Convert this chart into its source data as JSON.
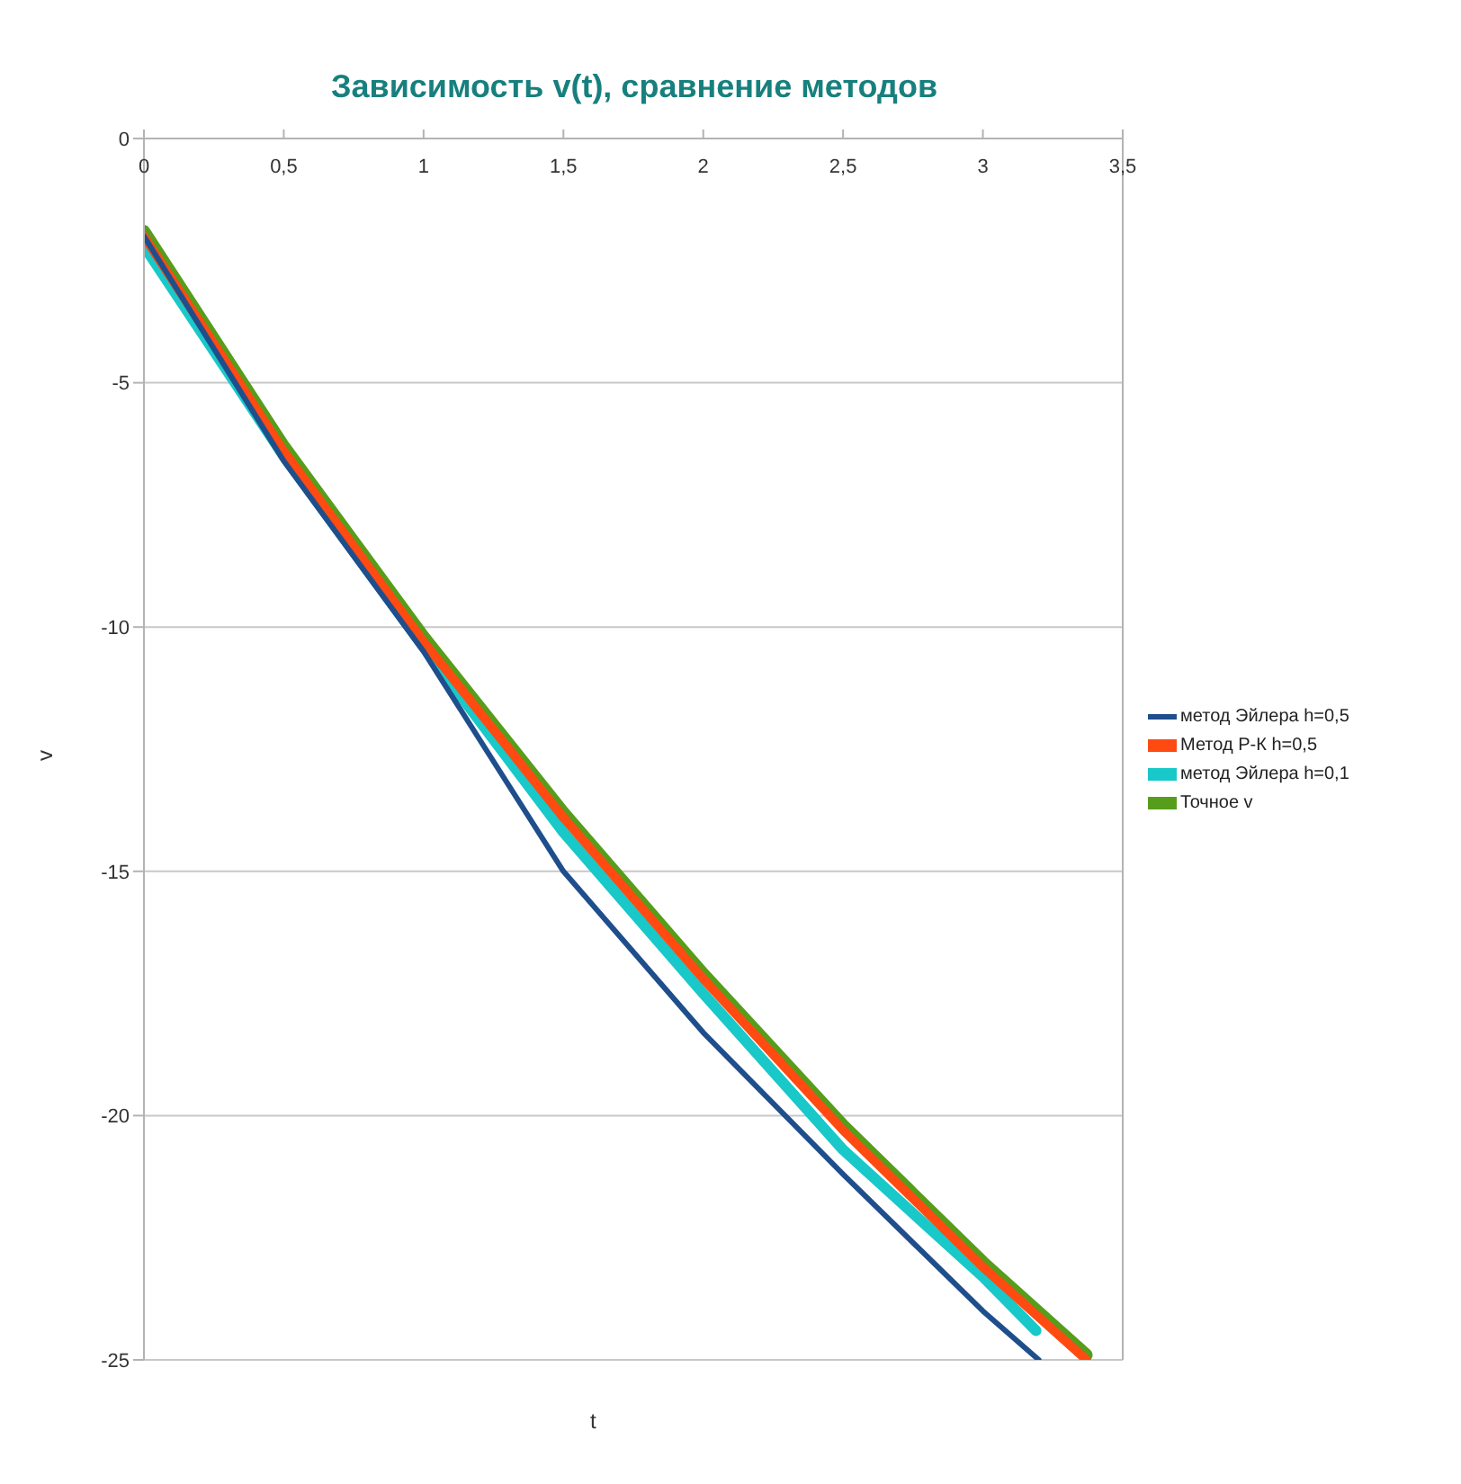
{
  "chart_data": {
    "type": "line",
    "title": "Зависимость v(t), сравнение методов",
    "xlabel": "t",
    "ylabel": "v",
    "xlim": [
      0,
      3.5
    ],
    "xticks": [
      0,
      {
        "value": 0.5,
        "label": "0,5"
      },
      1,
      {
        "value": 1.5,
        "label": "1,5"
      },
      2,
      {
        "value": 2.5,
        "label": "2,5"
      },
      3,
      {
        "value": 3.5,
        "label": "3,5"
      }
    ],
    "ylim": [
      -25,
      0
    ],
    "yticks": [
      -25,
      -20,
      -15,
      -10,
      -5,
      0
    ],
    "grid": "y",
    "legend": "right",
    "marker": "none",
    "line_style": "solid",
    "series": [
      {
        "name": "метод Эйлера h=0,5",
        "color": "#1f4e8c",
        "x": [
          0,
          0.5,
          1,
          1.5,
          2,
          2.5,
          3,
          3.2
        ],
        "values": [
          -2.0,
          -6.6,
          -10.5,
          -15.0,
          -18.3,
          -21.2,
          -24.0,
          -25.0
        ]
      },
      {
        "name": "Метод Р-К h=0,5",
        "color": "#ff4a12",
        "x": [
          0,
          0.5,
          1,
          1.5,
          2,
          2.5,
          3,
          3.37
        ],
        "values": [
          -2.0,
          -6.4,
          -10.3,
          -13.9,
          -17.2,
          -20.3,
          -23.1,
          -25.0
        ]
      },
      {
        "name": "метод Эйлера h=0,1",
        "color": "#19c8c8",
        "x": [
          0,
          0.5,
          1,
          1.5,
          2,
          2.5,
          3,
          3.19
        ],
        "values": [
          -2.2,
          -6.5,
          -10.4,
          -14.2,
          -17.5,
          -20.7,
          -23.3,
          -24.4
        ]
      },
      {
        "name": "Точное v",
        "color": "#579d1c",
        "x": [
          0,
          0.5,
          1,
          1.5,
          2,
          2.5,
          3,
          3.37
        ],
        "values": [
          -1.9,
          -6.3,
          -10.2,
          -13.8,
          -17.1,
          -20.2,
          -23.0,
          -24.9
        ]
      }
    ]
  }
}
